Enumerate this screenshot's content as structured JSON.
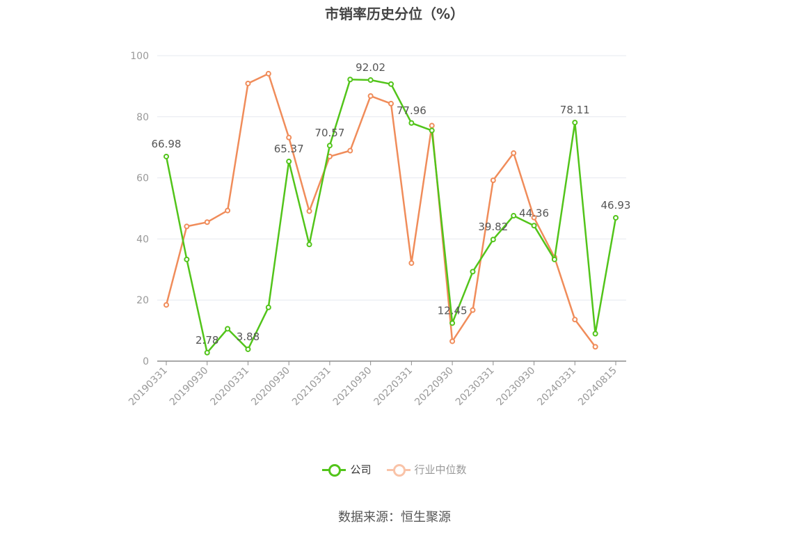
{
  "chart_data": {
    "type": "line",
    "title": "市销率历史分位（%）",
    "source": "数据来源：恒生聚源",
    "ylim": [
      0,
      100
    ],
    "yticks": [
      0,
      20,
      40,
      60,
      80,
      100
    ],
    "grid": true,
    "legend_position": "bottom",
    "x": [
      "20190331",
      "20190630",
      "20190930",
      "20191231",
      "20200331",
      "20200630",
      "20200930",
      "20201231",
      "20210331",
      "20210630",
      "20210930",
      "20211231",
      "20220331",
      "20220630",
      "20220930",
      "20221231",
      "20230331",
      "20230630",
      "20230930",
      "20231231",
      "20240331",
      "20240630",
      "20240815"
    ],
    "x_tick_labels": [
      "20190331",
      "20190930",
      "20200331",
      "20200930",
      "20210331",
      "20210930",
      "20220331",
      "20220930",
      "20230331",
      "20230930",
      "20240331",
      "20240815"
    ],
    "series": [
      {
        "name": "公司",
        "color": "#52c41a",
        "values": [
          66.98,
          33.3,
          2.78,
          10.6,
          3.88,
          17.6,
          65.37,
          38.2,
          70.57,
          92.2,
          92.02,
          90.7,
          77.96,
          75.5,
          12.45,
          29.3,
          39.82,
          47.6,
          44.36,
          33.3,
          78.11,
          9.0,
          46.93
        ],
        "labels": {
          "0": "66.98",
          "2": "2.78",
          "4": "3.88",
          "6": "65.37",
          "8": "70.57",
          "10": "92.02",
          "12": "77.96",
          "14": "12.45",
          "16": "39.82",
          "18": "44.36",
          "20": "78.11",
          "22": "46.93"
        }
      },
      {
        "name": "行业中位数",
        "color": "#f08c5a",
        "values": [
          18.4,
          44.1,
          45.5,
          49.3,
          90.9,
          94.1,
          73.2,
          49.1,
          67.0,
          68.9,
          86.8,
          84.3,
          32.1,
          77.1,
          6.5,
          16.7,
          59.2,
          68.1,
          47.0,
          34.0,
          13.6,
          4.7,
          null
        ]
      }
    ]
  }
}
